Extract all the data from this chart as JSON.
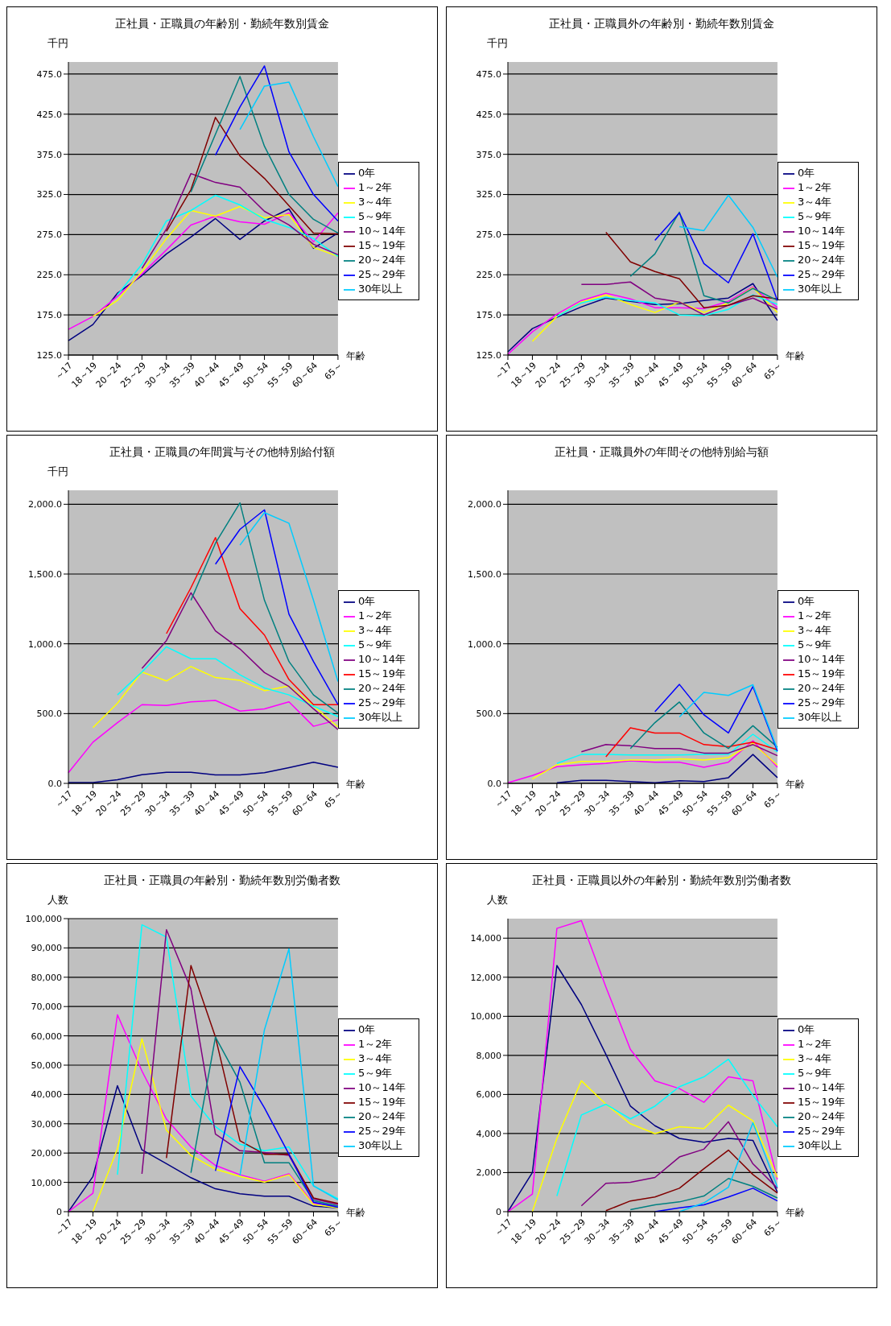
{
  "chart_data": [
    {
      "type": "line",
      "title": "正社員・正職員の年齢別・勤続年数別賃金",
      "ylabel": "千円",
      "xlabel": "年齢",
      "categories": [
        "～17",
        "18～19",
        "20～24",
        "25～29",
        "30～34",
        "35～39",
        "40～44",
        "45～49",
        "50～54",
        "55～59",
        "60～64",
        "65～"
      ],
      "ylim": [
        125,
        490
      ],
      "yticks": [
        {
          "value": 125,
          "label": "125.0"
        },
        {
          "value": 175,
          "label": "175.0"
        },
        {
          "value": 225,
          "label": "225.0"
        },
        {
          "value": 275,
          "label": "275.0"
        },
        {
          "value": 325,
          "label": "325.0"
        },
        {
          "value": 375,
          "label": "375.0"
        },
        {
          "value": 425,
          "label": "425.0"
        },
        {
          "value": 475,
          "label": "475.0"
        }
      ],
      "grid": "y",
      "legend": "right",
      "marker": "none",
      "series": [
        {
          "name": "0年",
          "color": "#000080",
          "values": [
            143,
            163,
            202,
            224,
            251,
            272,
            295,
            269,
            292,
            307,
            258,
            277
          ]
        },
        {
          "name": "1～2年",
          "color": "#ff00ff",
          "values": [
            157,
            173,
            198,
            226,
            256,
            287,
            298,
            291,
            288,
            302,
            266,
            302
          ]
        },
        {
          "name": "3～4年",
          "color": "#ffff00",
          "values": [
            null,
            173,
            193,
            229,
            270,
            305,
            298,
            310,
            296,
            300,
            259,
            248
          ]
        },
        {
          "name": "5～9年",
          "color": "#00ffff",
          "values": [
            null,
            null,
            200,
            238,
            292,
            305,
            324,
            312,
            294,
            284,
            270,
            248
          ]
        },
        {
          "name": "10～14年",
          "color": "#800080",
          "values": [
            null,
            null,
            null,
            233,
            282,
            351,
            340,
            334,
            304,
            287,
            263,
            250
          ]
        },
        {
          "name": "15～19年",
          "color": "#800000",
          "values": [
            null,
            null,
            null,
            null,
            279,
            331,
            421,
            373,
            345,
            311,
            277,
            276
          ]
        },
        {
          "name": "20～24年",
          "color": "#008080",
          "values": [
            null,
            null,
            null,
            null,
            null,
            328,
            400,
            472,
            385,
            325,
            294,
            277
          ]
        },
        {
          "name": "25～29年",
          "color": "#0000ff",
          "values": [
            null,
            null,
            null,
            null,
            null,
            null,
            374,
            434,
            485,
            378,
            325,
            292
          ]
        },
        {
          "name": "30年以上",
          "color": "#00ccff",
          "values": [
            null,
            null,
            null,
            null,
            null,
            null,
            null,
            406,
            460,
            465,
            397,
            335
          ]
        }
      ]
    },
    {
      "type": "line",
      "title": "正社員・正職員外の年齢別・勤続年数別賃金",
      "ylabel": "千円",
      "xlabel": "年齢",
      "categories": [
        "～17",
        "18～19",
        "20～24",
        "25～29",
        "30～34",
        "35～39",
        "40～44",
        "45～49",
        "50～54",
        "55～59",
        "60～64",
        "65～"
      ],
      "ylim": [
        125,
        490
      ],
      "yticks": [
        {
          "value": 125,
          "label": "125.0"
        },
        {
          "value": 175,
          "label": "175.0"
        },
        {
          "value": 225,
          "label": "225.0"
        },
        {
          "value": 275,
          "label": "275.0"
        },
        {
          "value": 325,
          "label": "325.0"
        },
        {
          "value": 375,
          "label": "375.0"
        },
        {
          "value": 425,
          "label": "425.0"
        },
        {
          "value": 475,
          "label": "475.0"
        }
      ],
      "grid": "y",
      "legend": "right",
      "marker": "none",
      "series": [
        {
          "name": "0年",
          "color": "#000080",
          "values": [
            129,
            158,
            172,
            185,
            196,
            192,
            188,
            189,
            193,
            196,
            214,
            168
          ]
        },
        {
          "name": "1～2年",
          "color": "#ff00ff",
          "values": [
            126,
            154,
            176,
            193,
            202,
            195,
            184,
            184,
            183,
            192,
            210,
            184
          ]
        },
        {
          "name": "3～4年",
          "color": "#ffff00",
          "values": [
            null,
            142,
            173,
            191,
            200,
            188,
            178,
            191,
            178,
            190,
            209,
            178
          ]
        },
        {
          "name": "5～9年",
          "color": "#00ffff",
          "values": [
            null,
            null,
            173,
            190,
            197,
            193,
            190,
            175,
            174,
            182,
            200,
            188
          ]
        },
        {
          "name": "10～14年",
          "color": "#800080",
          "values": [
            null,
            null,
            null,
            213,
            213,
            216,
            196,
            191,
            175,
            187,
            196,
            182
          ]
        },
        {
          "name": "15～19年",
          "color": "#800000",
          "values": [
            null,
            null,
            null,
            null,
            278,
            241,
            229,
            220,
            184,
            187,
            199,
            195
          ]
        },
        {
          "name": "20～24年",
          "color": "#008080",
          "values": [
            null,
            null,
            null,
            null,
            null,
            223,
            251,
            303,
            199,
            190,
            208,
            193
          ]
        },
        {
          "name": "25～29年",
          "color": "#0000ff",
          "values": [
            null,
            null,
            null,
            null,
            null,
            null,
            268,
            302,
            239,
            215,
            276,
            193
          ]
        },
        {
          "name": "30年以上",
          "color": "#00ccff",
          "values": [
            null,
            null,
            null,
            null,
            null,
            null,
            null,
            285,
            280,
            324,
            284,
            222
          ]
        }
      ]
    },
    {
      "type": "line",
      "title": "正社員・正職員の年間賞与その他特別給付額",
      "ylabel": "千円",
      "xlabel": "年齢",
      "categories": [
        "～17",
        "18～19",
        "20～24",
        "25～29",
        "30～34",
        "35～39",
        "40～44",
        "45～49",
        "50～54",
        "55～59",
        "60～64",
        "65～"
      ],
      "ylim": [
        0,
        2100
      ],
      "yticks": [
        {
          "value": 0,
          "label": "0.0"
        },
        {
          "value": 500,
          "label": "500.0"
        },
        {
          "value": 1000,
          "label": "1,000.0"
        },
        {
          "value": 1500,
          "label": "1,500.0"
        },
        {
          "value": 2000,
          "label": "2,000.0"
        }
      ],
      "grid": "y",
      "legend": "right",
      "marker": "none",
      "series": [
        {
          "name": "0年",
          "color": "#000080",
          "values": [
            6,
            6,
            26,
            62,
            80,
            80,
            60,
            60,
            76,
            112,
            152,
            116
          ]
        },
        {
          "name": "1～2年",
          "color": "#ff00ff",
          "values": [
            76,
            295,
            435,
            564,
            558,
            584,
            594,
            518,
            534,
            584,
            409,
            455
          ]
        },
        {
          "name": "3～4年",
          "color": "#ffff00",
          "values": [
            null,
            399,
            574,
            798,
            734,
            837,
            758,
            738,
            664,
            698,
            554,
            405
          ]
        },
        {
          "name": "5～9年",
          "color": "#00ffff",
          "values": [
            null,
            null,
            634,
            798,
            979,
            893,
            893,
            778,
            684,
            634,
            554,
            479
          ]
        },
        {
          "name": "10～14年",
          "color": "#800080",
          "values": [
            null,
            null,
            null,
            824,
            1023,
            1366,
            1093,
            963,
            794,
            694,
            534,
            385
          ]
        },
        {
          "name": "15～19年",
          "color": "#ff0000",
          "values": [
            null,
            null,
            null,
            null,
            1073,
            1402,
            1761,
            1252,
            1063,
            744,
            564,
            564
          ]
        },
        {
          "name": "20～24年",
          "color": "#008080",
          "values": [
            null,
            null,
            null,
            null,
            null,
            1312,
            1721,
            2010,
            1312,
            873,
            634,
            504
          ]
        },
        {
          "name": "25～29年",
          "color": "#0000ff",
          "values": [
            null,
            null,
            null,
            null,
            null,
            null,
            1571,
            1820,
            1960,
            1212,
            873,
            564
          ]
        },
        {
          "name": "30年以上",
          "color": "#00ccff",
          "values": [
            null,
            null,
            null,
            null,
            null,
            null,
            null,
            1707,
            1940,
            1864,
            1312,
            730
          ]
        }
      ]
    },
    {
      "type": "line",
      "title": "正社員・正職員外の年間その他特別給与額",
      "xlabel": "年齢",
      "categories": [
        "～17",
        "18～19",
        "20～24",
        "25～29",
        "30～34",
        "35～39",
        "40～44",
        "45～49",
        "50～54",
        "55～59",
        "60～64",
        "65～"
      ],
      "ylim": [
        0,
        2100
      ],
      "yticks": [
        {
          "value": 0,
          "label": "0.0"
        },
        {
          "value": 500,
          "label": "500.0"
        },
        {
          "value": 1000,
          "label": "1,000.0"
        },
        {
          "value": 1500,
          "label": "1,500.0"
        },
        {
          "value": 2000,
          "label": "2,000.0"
        }
      ],
      "grid": "y",
      "legend": "right",
      "marker": "none",
      "series": [
        {
          "name": "0年",
          "color": "#000080",
          "values": [
            null,
            null,
            4,
            22,
            22,
            13,
            4,
            19,
            13,
            41,
            207,
            41
          ]
        },
        {
          "name": "1～2年",
          "color": "#ff00ff",
          "values": [
            4,
            56,
            120,
            133,
            143,
            161,
            152,
            152,
            115,
            152,
            306,
            115
          ]
        },
        {
          "name": "3～4年",
          "color": "#ffff00",
          "values": [
            null,
            31,
            133,
            157,
            157,
            167,
            167,
            176,
            167,
            185,
            287,
            130
          ]
        },
        {
          "name": "5～9年",
          "color": "#00ffff",
          "values": [
            null,
            null,
            143,
            207,
            207,
            204,
            204,
            204,
            207,
            207,
            352,
            226
          ]
        },
        {
          "name": "10～14年",
          "color": "#800080",
          "values": [
            null,
            null,
            null,
            226,
            278,
            269,
            250,
            250,
            217,
            217,
            278,
            198
          ]
        },
        {
          "name": "15～19年",
          "color": "#ff0000",
          "values": [
            null,
            null,
            null,
            null,
            191,
            398,
            361,
            361,
            278,
            263,
            296,
            241
          ]
        },
        {
          "name": "20～24年",
          "color": "#008080",
          "values": [
            null,
            null,
            null,
            null,
            null,
            250,
            435,
            583,
            361,
            250,
            413,
            259
          ]
        },
        {
          "name": "25～29年",
          "color": "#0000ff",
          "values": [
            null,
            null,
            null,
            null,
            null,
            null,
            513,
            709,
            491,
            361,
            694,
            231
          ]
        },
        {
          "name": "30年以上",
          "color": "#00ccff",
          "values": [
            null,
            null,
            null,
            null,
            null,
            null,
            null,
            476,
            652,
            630,
            707,
            244
          ]
        }
      ]
    },
    {
      "type": "line",
      "title": "正社員・正職員の年齢別・勤続年数別労働者数",
      "ylabel": "人数",
      "xlabel": "年齢",
      "categories": [
        "～17",
        "18～19",
        "20～24",
        "25～29",
        "30～34",
        "35～39",
        "40～44",
        "45～49",
        "50～54",
        "55～59",
        "60～64",
        "65～"
      ],
      "ylim": [
        0,
        100000
      ],
      "yticks": [
        {
          "value": 0,
          "label": "0"
        },
        {
          "value": 10000,
          "label": "10,000"
        },
        {
          "value": 20000,
          "label": "20,000"
        },
        {
          "value": 30000,
          "label": "30,000"
        },
        {
          "value": 40000,
          "label": "40,000"
        },
        {
          "value": 50000,
          "label": "50,000"
        },
        {
          "value": 60000,
          "label": "60,000"
        },
        {
          "value": 70000,
          "label": "70,000"
        },
        {
          "value": 80000,
          "label": "80,000"
        },
        {
          "value": 90000,
          "label": "90,000"
        },
        {
          "value": 100000,
          "label": "100,000"
        }
      ],
      "grid": "y",
      "legend": "right",
      "marker": "none",
      "series": [
        {
          "name": "0年",
          "color": "#000080",
          "values": [
            0,
            12000,
            43000,
            21100,
            16400,
            11600,
            7800,
            6100,
            5300,
            5300,
            1900,
            1300
          ]
        },
        {
          "name": "1～2年",
          "color": "#ff00ff",
          "values": [
            0,
            6300,
            67200,
            48000,
            31600,
            22100,
            15800,
            12600,
            10400,
            12900,
            2800,
            1900
          ]
        },
        {
          "name": "3～4年",
          "color": "#ffff00",
          "values": [
            null,
            0,
            21500,
            59000,
            27800,
            19200,
            14500,
            12000,
            10100,
            12600,
            2500,
            1300
          ]
        },
        {
          "name": "5～9年",
          "color": "#00ffff",
          "values": [
            null,
            null,
            12600,
            97900,
            93700,
            39400,
            29000,
            23000,
            20800,
            22100,
            8800,
            4400
          ]
        },
        {
          "name": "10～14年",
          "color": "#800080",
          "values": [
            null,
            null,
            null,
            12900,
            96200,
            76000,
            26500,
            20800,
            20200,
            19200,
            4400,
            2500
          ]
        },
        {
          "name": "15～19年",
          "color": "#800000",
          "values": [
            null,
            null,
            null,
            null,
            18300,
            84000,
            59600,
            24200,
            19600,
            19600,
            4700,
            2800
          ]
        },
        {
          "name": "20～24年",
          "color": "#008080",
          "values": [
            null,
            null,
            null,
            null,
            null,
            13300,
            59600,
            44200,
            16700,
            16700,
            3800,
            1900
          ]
        },
        {
          "name": "25～29年",
          "color": "#0000ff",
          "values": [
            null,
            null,
            null,
            null,
            null,
            null,
            13900,
            49500,
            35400,
            19600,
            3200,
            1500
          ]
        },
        {
          "name": "30年以上",
          "color": "#00ccff",
          "values": [
            null,
            null,
            null,
            null,
            null,
            null,
            null,
            12300,
            62100,
            89700,
            8800,
            4000
          ]
        }
      ]
    },
    {
      "type": "line",
      "title": "正社員・正職員以外の年齢別・勤続年数別労働者数",
      "ylabel": "人数",
      "xlabel": "年齢",
      "categories": [
        "～17",
        "18～19",
        "20～24",
        "25～29",
        "30～34",
        "35～39",
        "40～44",
        "45～49",
        "50～54",
        "55～59",
        "60～64",
        "65～"
      ],
      "ylim": [
        0,
        15000
      ],
      "yticks": [
        {
          "value": 0,
          "label": "0"
        },
        {
          "value": 2000,
          "label": "2,000"
        },
        {
          "value": 4000,
          "label": "4,000"
        },
        {
          "value": 6000,
          "label": "6,000"
        },
        {
          "value": 8000,
          "label": "8,000"
        },
        {
          "value": 10000,
          "label": "10,000"
        },
        {
          "value": 12000,
          "label": "12,000"
        },
        {
          "value": 14000,
          "label": "14,000"
        }
      ],
      "grid": "y",
      "legend": "right",
      "marker": "none",
      "series": [
        {
          "name": "0年",
          "color": "#000080",
          "values": [
            0,
            2000,
            12600,
            10600,
            8050,
            5400,
            4400,
            3750,
            3550,
            3750,
            3650,
            1000
          ]
        },
        {
          "name": "1～2年",
          "color": "#ff00ff",
          "values": [
            0,
            900,
            14500,
            14900,
            11500,
            8300,
            6700,
            6300,
            5600,
            6900,
            6700,
            1650
          ]
        },
        {
          "name": "3～4年",
          "color": "#ffff00",
          "values": [
            null,
            0,
            3750,
            6700,
            5500,
            4500,
            4000,
            4350,
            4250,
            5450,
            4650,
            1750
          ]
        },
        {
          "name": "5～9年",
          "color": "#00ffff",
          "values": [
            null,
            null,
            800,
            4950,
            5500,
            4750,
            5400,
            6400,
            6900,
            7800,
            5950,
            4350
          ]
        },
        {
          "name": "10～14年",
          "color": "#800080",
          "values": [
            null,
            null,
            null,
            300,
            1450,
            1500,
            1750,
            2800,
            3200,
            4600,
            2450,
            1200
          ]
        },
        {
          "name": "15～19年",
          "color": "#800000",
          "values": [
            null,
            null,
            null,
            null,
            50,
            550,
            750,
            1200,
            2200,
            3150,
            1900,
            950
          ]
        },
        {
          "name": "20～24年",
          "color": "#008080",
          "values": [
            null,
            null,
            null,
            null,
            null,
            100,
            350,
            500,
            800,
            1700,
            1300,
            700
          ]
        },
        {
          "name": "25～29年",
          "color": "#0000ff",
          "values": [
            null,
            null,
            null,
            null,
            null,
            null,
            0,
            200,
            350,
            750,
            1200,
            550
          ]
        },
        {
          "name": "30年以上",
          "color": "#00ccff",
          "values": [
            null,
            null,
            null,
            null,
            null,
            null,
            null,
            0,
            450,
            1250,
            4550,
            1250
          ]
        }
      ]
    }
  ]
}
